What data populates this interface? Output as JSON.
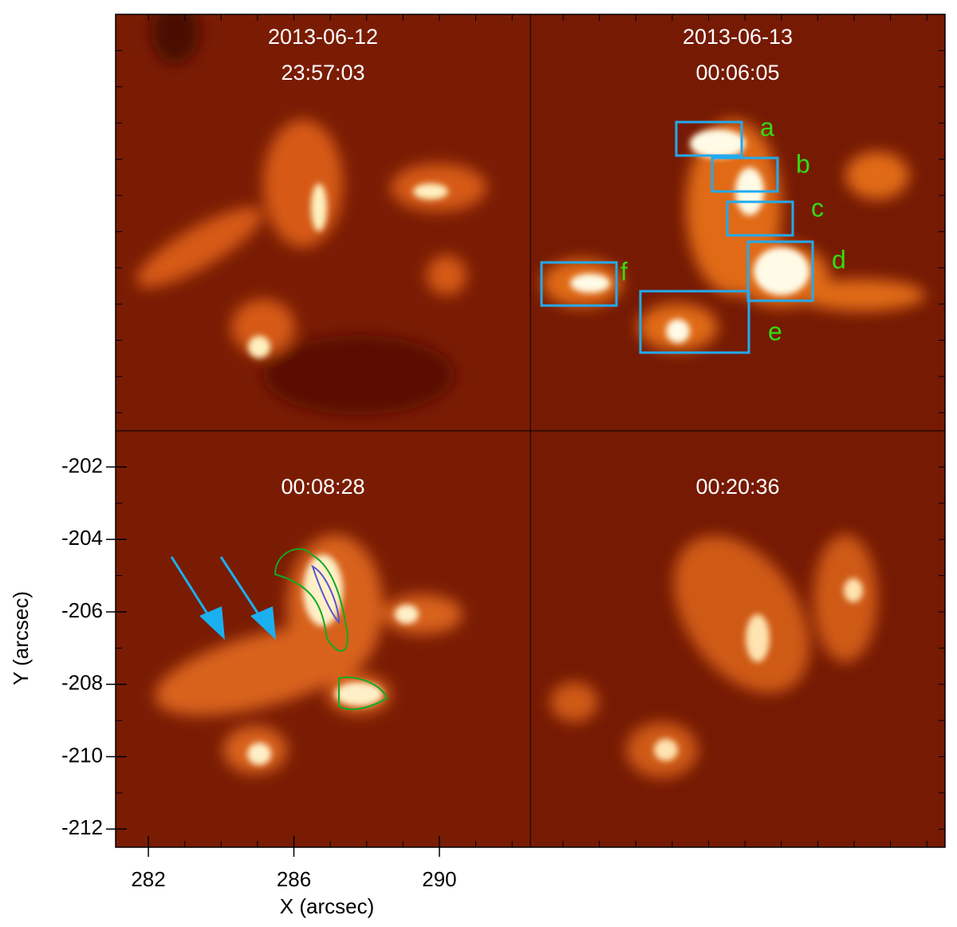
{
  "chart_data": {
    "type": "image-grid",
    "panels": [
      {
        "date": "2013-06-12",
        "time": "23:57:03"
      },
      {
        "date": "2013-06-13",
        "time": "00:06:05",
        "boxes": [
          "a",
          "b",
          "c",
          "d",
          "e",
          "f"
        ]
      },
      {
        "time": "00:08:28"
      },
      {
        "time": "00:20:36"
      }
    ],
    "xlabel": "X (arcsec)",
    "ylabel": "Y (arcsec)",
    "xlim": [
      281.1,
      292.5
    ],
    "ylim": [
      -212.5,
      -201.0
    ],
    "xticks": [
      282,
      286,
      290
    ],
    "yticks": [
      -212,
      -210,
      -208,
      -206,
      -204,
      -202
    ]
  }
}
